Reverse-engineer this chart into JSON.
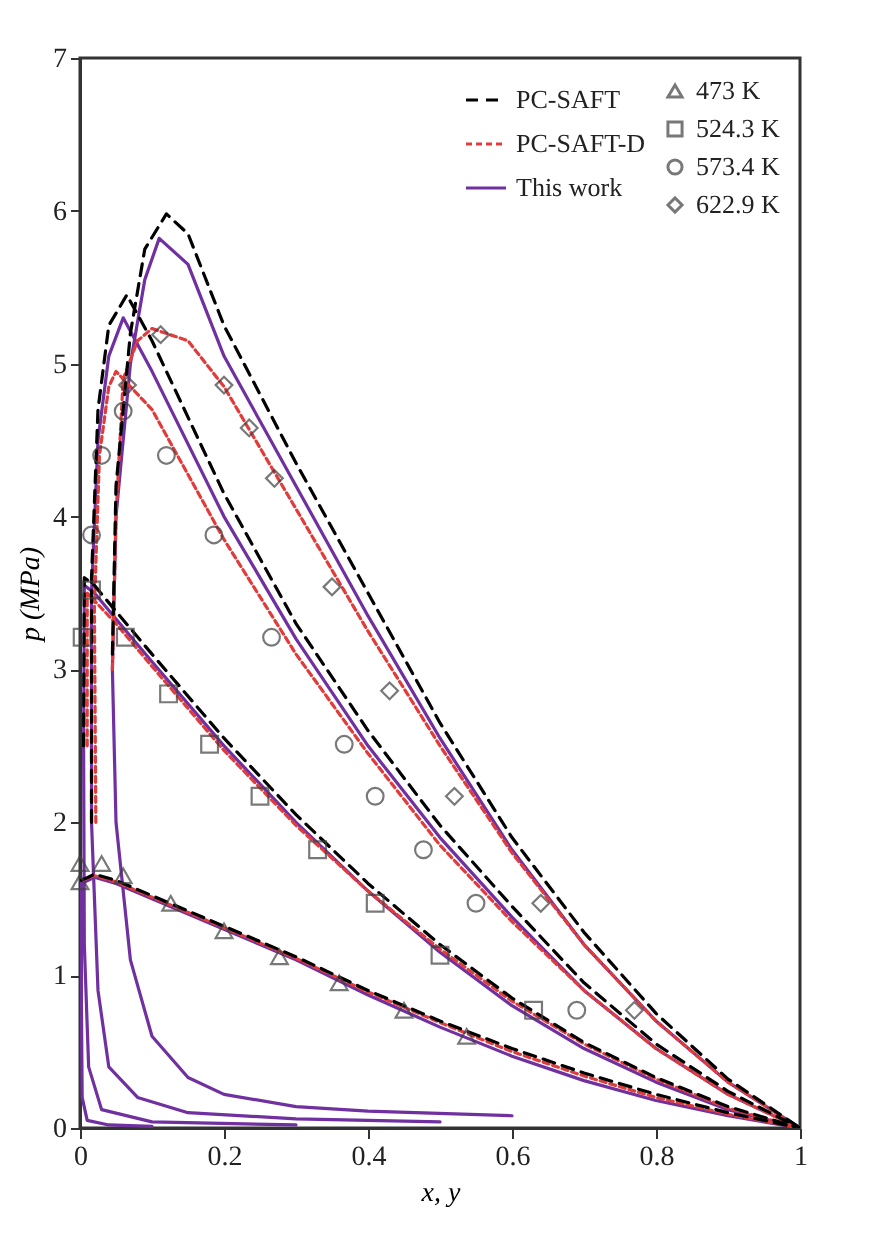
{
  "chart_data": {
    "type": "scatter",
    "xlabel": "x, y",
    "ylabel": "p (MPa)",
    "xlim": [
      0,
      1
    ],
    "ylim": [
      0,
      7
    ],
    "xticks": [
      0,
      0.2,
      0.4,
      0.6,
      0.8,
      1
    ],
    "yticks": [
      0,
      1,
      2,
      3,
      4,
      5,
      6,
      7
    ],
    "grid": false,
    "legend": "top right",
    "series": [
      {
        "name": "473 K",
        "type": "scatter",
        "marker": "triangle",
        "color": "#404040",
        "x": [
          0,
          0,
          0.03,
          0.06,
          0.126,
          0.2,
          0.277,
          0.36,
          0.45,
          0.537
        ],
        "values": [
          1.73,
          1.61,
          1.73,
          1.65,
          1.47,
          1.29,
          1.12,
          0.95,
          0.77,
          0.6
        ]
      },
      {
        "name": "524.3 K",
        "type": "scatter",
        "marker": "square",
        "color": "#404040",
        "x": [
          0.003,
          0.016,
          0.063,
          0.123,
          0.18,
          0.25,
          0.33,
          0.41,
          0.5,
          0.63
        ],
        "values": [
          3.21,
          3.52,
          3.21,
          2.84,
          2.51,
          2.17,
          1.82,
          1.47,
          1.13,
          0.77
        ]
      },
      {
        "name": "573.4 K",
        "type": "scatter",
        "marker": "circle",
        "color": "#404040",
        "x": [
          0.016,
          0.03,
          0.06,
          0.12,
          0.186,
          0.266,
          0.367,
          0.41,
          0.477,
          0.55,
          0.69
        ],
        "values": [
          3.88,
          4.4,
          4.69,
          4.4,
          3.88,
          3.21,
          2.51,
          2.17,
          1.82,
          1.47,
          0.77
        ]
      },
      {
        "name": "622.9 K",
        "type": "scatter",
        "marker": "diamond",
        "color": "#404040",
        "x": [
          0.066,
          0.112,
          0.2,
          0.235,
          0.27,
          0.35,
          0.43,
          0.52,
          0.64,
          0.77
        ],
        "values": [
          4.86,
          5.19,
          4.86,
          4.58,
          4.25,
          3.54,
          2.86,
          2.17,
          1.47,
          0.77
        ]
      },
      {
        "name": "PC-SAFT",
        "type": "line",
        "line_style": "dashed",
        "color": "#000000",
        "x": [
          0.002,
          0.02,
          0.05,
          0.1,
          0.2,
          0.3,
          0.4,
          0.5,
          0.6,
          0.7,
          0.8,
          0.9,
          1
        ],
        "values": [
          1.62,
          1.66,
          1.62,
          1.52,
          1.32,
          1.12,
          0.9,
          0.7,
          0.52,
          0.36,
          0.22,
          0.1,
          0
        ]
      },
      {
        "type": "line",
        "line_style": "dashed",
        "color": "#000000",
        "x": [
          0.005,
          0.006,
          0.02,
          0.05,
          0.1,
          0.2,
          0.3,
          0.4,
          0.5,
          0.6,
          0.7,
          0.8,
          0.9,
          1
        ],
        "values": [
          2.5,
          3.6,
          3.55,
          3.38,
          3.1,
          2.55,
          2.05,
          1.6,
          1.2,
          0.85,
          0.56,
          0.33,
          0.14,
          0
        ]
      },
      {
        "type": "line",
        "line_style": "dashed",
        "color": "#000000",
        "x": [
          0.016,
          0.016,
          0.025,
          0.04,
          0.065,
          0.1,
          0.2,
          0.3,
          0.4,
          0.5,
          0.6,
          0.7,
          0.8,
          0.9,
          1
        ],
        "values": [
          2.0,
          3.6,
          4.7,
          5.25,
          5.45,
          5.15,
          4.15,
          3.3,
          2.6,
          1.98,
          1.45,
          0.95,
          0.55,
          0.24,
          0
        ]
      },
      {
        "type": "line",
        "line_style": "dashed",
        "color": "#000000",
        "x": [
          0.045,
          0.05,
          0.07,
          0.09,
          0.12,
          0.15,
          0.2,
          0.3,
          0.4,
          0.5,
          0.6,
          0.7,
          0.8,
          0.9,
          1
        ],
        "values": [
          3.1,
          4.2,
          5.2,
          5.75,
          5.98,
          5.85,
          5.25,
          4.35,
          3.5,
          2.65,
          1.9,
          1.28,
          0.75,
          0.32,
          0
        ]
      },
      {
        "name": "PC-SAFT-D",
        "type": "line",
        "line_style": "dotted",
        "color": "#e03c3c",
        "x": [
          0.002,
          0.02,
          0.05,
          0.1,
          0.2,
          0.3,
          0.4,
          0.5,
          0.6,
          0.7,
          0.8,
          0.9,
          1
        ],
        "values": [
          1.62,
          1.65,
          1.61,
          1.51,
          1.31,
          1.11,
          0.89,
          0.69,
          0.5,
          0.34,
          0.2,
          0.09,
          0
        ]
      },
      {
        "type": "line",
        "line_style": "dotted",
        "color": "#e03c3c",
        "x": [
          0.01,
          0.01,
          0.02,
          0.05,
          0.1,
          0.2,
          0.3,
          0.4,
          0.5,
          0.6,
          0.7,
          0.8,
          0.9,
          1
        ],
        "values": [
          2.5,
          3.5,
          3.45,
          3.3,
          3.02,
          2.47,
          1.98,
          1.55,
          1.17,
          0.83,
          0.55,
          0.32,
          0.13,
          0
        ]
      },
      {
        "type": "line",
        "line_style": "dotted",
        "color": "#e03c3c",
        "x": [
          0.022,
          0.02,
          0.027,
          0.04,
          0.05,
          0.1,
          0.2,
          0.3,
          0.4,
          0.5,
          0.6,
          0.7,
          0.8,
          0.9,
          1
        ],
        "values": [
          2.0,
          3.4,
          4.4,
          4.85,
          4.95,
          4.7,
          3.85,
          3.1,
          2.45,
          1.85,
          1.35,
          0.9,
          0.52,
          0.22,
          0
        ]
      },
      {
        "type": "line",
        "line_style": "dotted",
        "color": "#e03c3c",
        "x": [
          0.045,
          0.05,
          0.06,
          0.08,
          0.1,
          0.15,
          0.2,
          0.3,
          0.4,
          0.5,
          0.6,
          0.7,
          0.8,
          0.9,
          1
        ],
        "values": [
          3.0,
          4.0,
          4.9,
          5.15,
          5.23,
          5.15,
          4.85,
          4.05,
          3.25,
          2.5,
          1.8,
          1.2,
          0.7,
          0.3,
          0
        ]
      },
      {
        "name": "This work",
        "type": "line",
        "line_style": "solid",
        "color": "#7030a0",
        "x": [
          0.1,
          0.04,
          0.01,
          0.003,
          0.002,
          0.002,
          0.02,
          0.05,
          0.1,
          0.2,
          0.3,
          0.4,
          0.5,
          0.6,
          0.7,
          0.8,
          0.9,
          1
        ],
        "values": [
          0.01,
          0.02,
          0.05,
          0.2,
          0.8,
          1.6,
          1.64,
          1.6,
          1.5,
          1.3,
          1.1,
          0.87,
          0.66,
          0.47,
          0.31,
          0.18,
          0.08,
          0
        ]
      },
      {
        "type": "line",
        "line_style": "solid",
        "color": "#7030a0",
        "x": [
          0.3,
          0.1,
          0.03,
          0.012,
          0.006,
          0.005,
          0.006,
          0.02,
          0.05,
          0.1,
          0.2,
          0.3,
          0.4,
          0.5,
          0.6,
          0.7,
          0.8,
          0.9,
          1
        ],
        "values": [
          0.02,
          0.04,
          0.12,
          0.4,
          1.2,
          2.5,
          3.55,
          3.5,
          3.33,
          3.05,
          2.5,
          2.0,
          1.55,
          1.15,
          0.8,
          0.52,
          0.3,
          0.12,
          0
        ]
      },
      {
        "type": "line",
        "line_style": "solid",
        "color": "#7030a0",
        "x": [
          0.5,
          0.3,
          0.15,
          0.08,
          0.04,
          0.025,
          0.016,
          0.016,
          0.025,
          0.04,
          0.06,
          0.1,
          0.2,
          0.3,
          0.4,
          0.5,
          0.6,
          0.7,
          0.8,
          0.9,
          1
        ],
        "values": [
          0.04,
          0.06,
          0.1,
          0.2,
          0.4,
          0.9,
          2.0,
          3.5,
          4.5,
          5.05,
          5.3,
          4.95,
          4.0,
          3.2,
          2.5,
          1.9,
          1.38,
          0.9,
          0.52,
          0.22,
          0
        ]
      },
      {
        "type": "line",
        "line_style": "solid",
        "color": "#7030a0",
        "x": [
          0.6,
          0.4,
          0.3,
          0.2,
          0.15,
          0.1,
          0.07,
          0.05,
          0.045,
          0.05,
          0.07,
          0.09,
          0.11,
          0.15,
          0.2,
          0.3,
          0.4,
          0.5,
          0.6,
          0.7,
          0.8,
          0.9,
          1
        ],
        "values": [
          0.08,
          0.11,
          0.14,
          0.22,
          0.33,
          0.6,
          1.1,
          2.0,
          3.0,
          4.0,
          5.0,
          5.55,
          5.82,
          5.65,
          5.05,
          4.2,
          3.35,
          2.55,
          1.82,
          1.2,
          0.7,
          0.3,
          0
        ]
      }
    ]
  }
}
